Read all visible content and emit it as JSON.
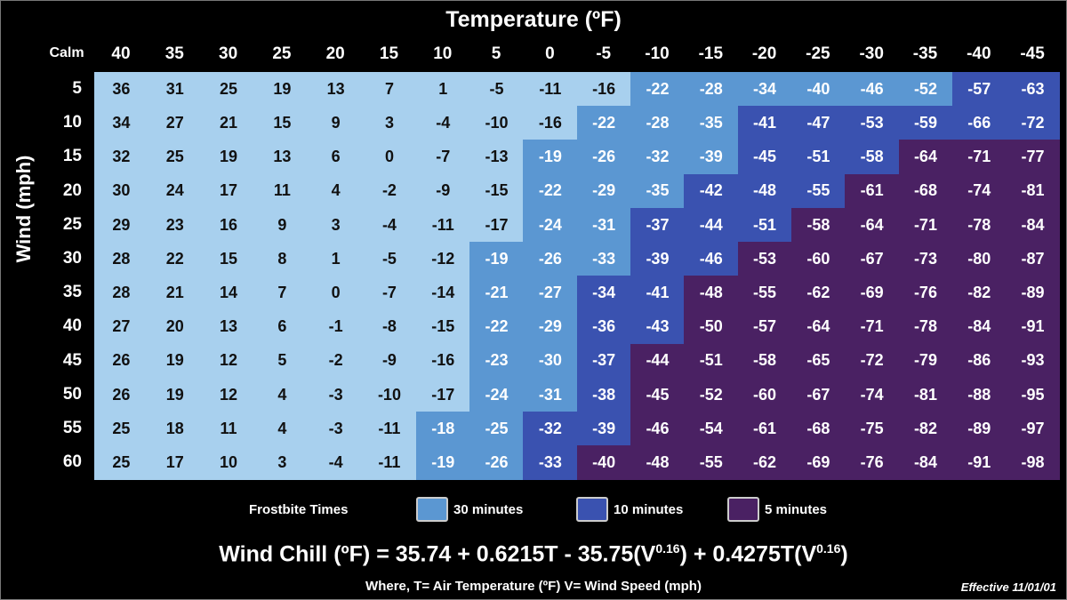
{
  "chart_data": {
    "type": "heatmap",
    "title": "Temperature (ºF)",
    "xlabel": "Temperature (ºF)",
    "ylabel": "Wind (mph)",
    "corner_label": "Calm",
    "temperatures": [
      40,
      35,
      30,
      25,
      20,
      15,
      10,
      5,
      0,
      -5,
      -10,
      -15,
      -20,
      -25,
      -30,
      -35,
      -40,
      -45
    ],
    "wind_speeds": [
      5,
      10,
      15,
      20,
      25,
      30,
      35,
      40,
      45,
      50,
      55,
      60
    ],
    "values": [
      [
        36,
        31,
        25,
        19,
        13,
        7,
        1,
        -5,
        -11,
        -16,
        -22,
        -28,
        -34,
        -40,
        -46,
        -52,
        -57,
        -63
      ],
      [
        34,
        27,
        21,
        15,
        9,
        3,
        -4,
        -10,
        -16,
        -22,
        -28,
        -35,
        -41,
        -47,
        -53,
        -59,
        -66,
        -72
      ],
      [
        32,
        25,
        19,
        13,
        6,
        0,
        -7,
        -13,
        -19,
        -26,
        -32,
        -39,
        -45,
        -51,
        -58,
        -64,
        -71,
        -77
      ],
      [
        30,
        24,
        17,
        11,
        4,
        -2,
        -9,
        -15,
        -22,
        -29,
        -35,
        -42,
        -48,
        -55,
        -61,
        -68,
        -74,
        -81
      ],
      [
        29,
        23,
        16,
        9,
        3,
        -4,
        -11,
        -17,
        -24,
        -31,
        -37,
        -44,
        -51,
        -58,
        -64,
        -71,
        -78,
        -84
      ],
      [
        28,
        22,
        15,
        8,
        1,
        -5,
        -12,
        -19,
        -26,
        -33,
        -39,
        -46,
        -53,
        -60,
        -67,
        -73,
        -80,
        -87
      ],
      [
        28,
        21,
        14,
        7,
        0,
        -7,
        -14,
        -21,
        -27,
        -34,
        -41,
        -48,
        -55,
        -62,
        -69,
        -76,
        -82,
        -89
      ],
      [
        27,
        20,
        13,
        6,
        -1,
        -8,
        -15,
        -22,
        -29,
        -36,
        -43,
        -50,
        -57,
        -64,
        -71,
        -78,
        -84,
        -91
      ],
      [
        26,
        19,
        12,
        5,
        -2,
        -9,
        -16,
        -23,
        -30,
        -37,
        -44,
        -51,
        -58,
        -65,
        -72,
        -79,
        -86,
        -93
      ],
      [
        26,
        19,
        12,
        4,
        -3,
        -10,
        -17,
        -24,
        -31,
        -38,
        -45,
        -52,
        -60,
        -67,
        -74,
        -81,
        -88,
        -95
      ],
      [
        25,
        18,
        11,
        4,
        -3,
        -11,
        -18,
        -25,
        -32,
        -39,
        -46,
        -54,
        -61,
        -68,
        -75,
        -82,
        -89,
        -97
      ],
      [
        25,
        17,
        10,
        3,
        -4,
        -11,
        -19,
        -26,
        -33,
        -40,
        -48,
        -55,
        -62,
        -69,
        -76,
        -84,
        -91,
        -98
      ]
    ],
    "frostbite_zone_start_temperature": {
      "30 minutes": [
        -10,
        -5,
        0,
        0,
        0,
        5,
        5,
        5,
        5,
        5,
        10,
        10
      ],
      "10 minutes": [
        -40,
        -20,
        -20,
        -15,
        -10,
        -10,
        -5,
        -5,
        -5,
        -5,
        0,
        0
      ],
      "5 minutes": [
        null,
        null,
        -35,
        -30,
        -25,
        -20,
        -15,
        -15,
        -10,
        -10,
        -10,
        -5
      ]
    },
    "colors": {
      "none": "#a8d0ee",
      "30 minutes": "#5b97d2",
      "10 minutes": "#3a52b0",
      "5 minutes": "#4a2163"
    }
  },
  "legend": {
    "title": "Frostbite Times",
    "items": [
      {
        "label": "30 minutes",
        "color": "#5b97d2"
      },
      {
        "label": "10 minutes",
        "color": "#3a52b0"
      },
      {
        "label": "5 minutes",
        "color": "#4a2163"
      }
    ]
  },
  "formula": {
    "lhs": "Wind Chill (ºF) = 35.74 + 0.6215T - 35.75(V",
    "exp1": "0.16",
    "mid": ") + 0.4275T(V",
    "exp2": "0.16",
    "end": ")"
  },
  "where": "Where, T= Air Temperature (ºF)   V= Wind Speed (mph)",
  "effective": "Effective 11/01/01"
}
